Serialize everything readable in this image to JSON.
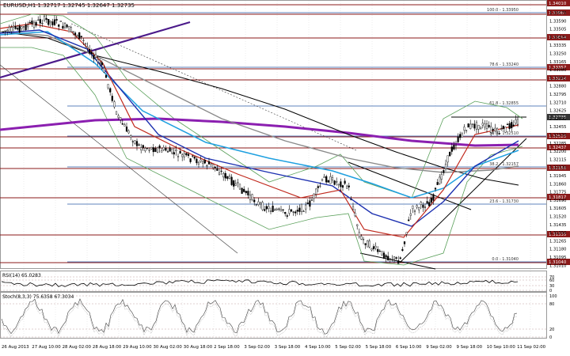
{
  "header": {
    "title": "EURUSD,H1  1.32717 1.32745 1.32647 1.32735",
    "rsi_label": "RSI(14) 65.0283",
    "stoch_label": "Stoch(8,3,3) 75.6358 67.3034"
  },
  "price_axis": {
    "labels": [
      "1.33675",
      "1.33590",
      "1.33505",
      "1.33420",
      "1.33335",
      "1.33250",
      "1.33165",
      "1.33080",
      "1.32965",
      "1.32880",
      "1.32795",
      "1.32710",
      "1.32625",
      "1.32540",
      "1.32455",
      "1.32370",
      "1.32285",
      "1.32200",
      "1.32115",
      "1.32030",
      "1.31945",
      "1.31860",
      "1.31775",
      "1.31690",
      "1.31605",
      "1.31520",
      "1.31435",
      "1.31350",
      "1.31265",
      "1.31180",
      "1.31095",
      "1.31010"
    ]
  },
  "price_tags": [
    {
      "text": "1.34010",
      "color": "#8b1a1a"
    },
    {
      "text": "1.33965",
      "color": "#8b1a1a"
    },
    {
      "text": "1.33694",
      "color": "#8b1a1a"
    },
    {
      "text": "1.33357",
      "color": "#8b1a1a"
    },
    {
      "text": "1.33214",
      "color": "#8b1a1a"
    },
    {
      "text": "1.32735",
      "color": "#333333"
    },
    {
      "text": "1.32525",
      "color": "#8b1a1a"
    },
    {
      "text": "1.32437",
      "color": "#8b1a1a"
    },
    {
      "text": "1.32156",
      "color": "#8b1a1a"
    },
    {
      "text": "1.31817",
      "color": "#8b1a1a"
    },
    {
      "text": "1.31335",
      "color": "#8b1a1a"
    },
    {
      "text": "1.31040",
      "color": "#8b1a1a"
    }
  ],
  "fib_labels": [
    {
      "text": "100.0 - 1.33950"
    },
    {
      "text": "78.6 - 1.33240"
    },
    {
      "text": "61.8 - 1.32855"
    },
    {
      "text": "50.0 - 1.32510"
    },
    {
      "text": "38.2 - 1.32157"
    },
    {
      "text": "23.6 - 1.31730"
    },
    {
      "text": "0.0 - 1.31040"
    }
  ],
  "rsi_axis": [
    "70",
    "60",
    "30",
    "0"
  ],
  "stoch_axis": [
    "100",
    "80",
    "20",
    "0"
  ],
  "time_axis": [
    "26 Aug 2013",
    "27 Aug 10:00",
    "28 Aug 02:00",
    "28 Aug 18:00",
    "29 Aug 10:00",
    "30 Aug 02:00",
    "30 Aug 18:00",
    "2 Sep 18:00",
    "3 Sep 02:00",
    "3 Sep 18:00",
    "4 Sep 10:00",
    "5 Sep 02:00",
    "5 Sep 18:00",
    "6 Sep 10:00",
    "9 Sep 02:00",
    "9 Sep 18:00",
    "10 Sep 10:00",
    "11 Sep 02:00"
  ],
  "colors": {
    "background": "#ffffff",
    "grid": "#d8d8d8",
    "candle": "#000000",
    "ma_red": "#c0281c",
    "ma_blue": "#1c30b0",
    "ma_cyan": "#1ea0e0",
    "ma_gray": "#8a8a8a",
    "ma_black": "#000000",
    "ma_purple": "#8b1fb0",
    "bollinger": "#5aa05a",
    "level_red": "#8b1a1a",
    "fib_blue": "#2a5aa8",
    "rsi_line": "#000000",
    "stoch_line": "#404040"
  }
}
